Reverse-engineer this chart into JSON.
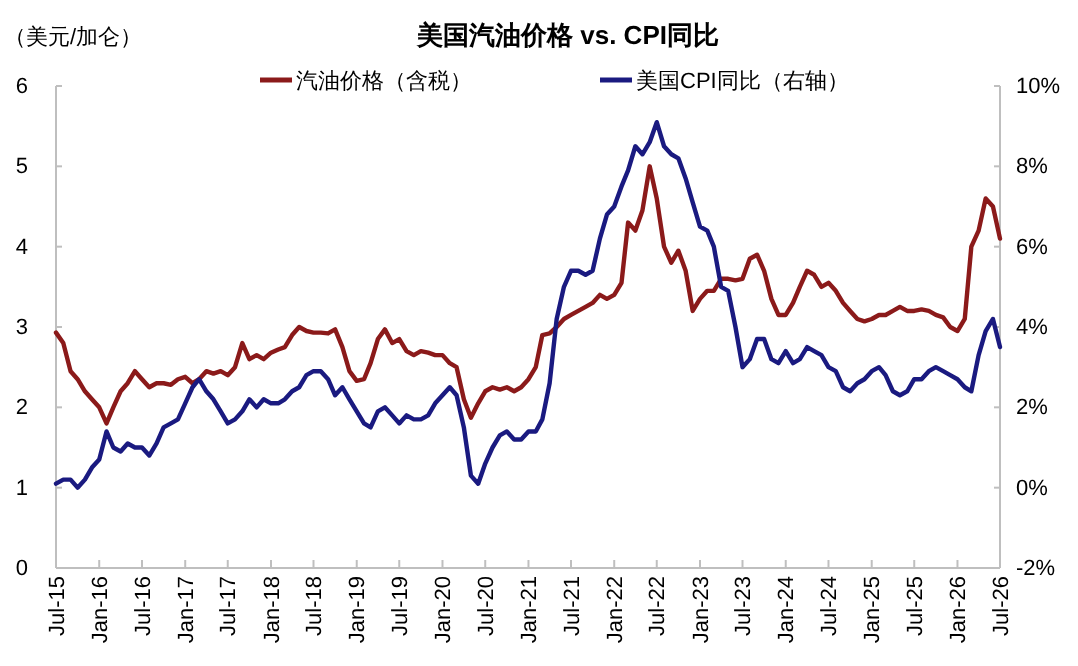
{
  "chart_data": {
    "type": "line",
    "title": "美国汽油价格 vs. CPI同比",
    "ylabel": "（美元/加仑）",
    "x": [
      "2015-07",
      "2015-08",
      "2015-09",
      "2015-10",
      "2015-11",
      "2015-12",
      "2016-01",
      "2016-02",
      "2016-03",
      "2016-04",
      "2016-05",
      "2016-06",
      "2016-07",
      "2016-08",
      "2016-09",
      "2016-10",
      "2016-11",
      "2016-12",
      "2017-01",
      "2017-02",
      "2017-03",
      "2017-04",
      "2017-05",
      "2017-06",
      "2017-07",
      "2017-08",
      "2017-09",
      "2017-10",
      "2017-11",
      "2017-12",
      "2018-01",
      "2018-02",
      "2018-03",
      "2018-04",
      "2018-05",
      "2018-06",
      "2018-07",
      "2018-08",
      "2018-09",
      "2018-10",
      "2018-11",
      "2018-12",
      "2019-01",
      "2019-02",
      "2019-03",
      "2019-04",
      "2019-05",
      "2019-06",
      "2019-07",
      "2019-08",
      "2019-09",
      "2019-10",
      "2019-11",
      "2019-12",
      "2020-01",
      "2020-02",
      "2020-03",
      "2020-04",
      "2020-05",
      "2020-06",
      "2020-07",
      "2020-08",
      "2020-09",
      "2020-10",
      "2020-11",
      "2020-12",
      "2021-01",
      "2021-02",
      "2021-03",
      "2021-04",
      "2021-05",
      "2021-06",
      "2021-07",
      "2021-08",
      "2021-09",
      "2021-10",
      "2021-11",
      "2021-12",
      "2022-01",
      "2022-02",
      "2022-03",
      "2022-04",
      "2022-05",
      "2022-06",
      "2022-07",
      "2022-08",
      "2022-09",
      "2022-10",
      "2022-11",
      "2022-12",
      "2023-01",
      "2023-02",
      "2023-03",
      "2023-04",
      "2023-05",
      "2023-06",
      "2023-07",
      "2023-08",
      "2023-09",
      "2023-10",
      "2023-11",
      "2023-12",
      "2024-01",
      "2024-02",
      "2024-03",
      "2024-04",
      "2024-05",
      "2024-06",
      "2024-07",
      "2024-08",
      "2024-09",
      "2024-10",
      "2024-11",
      "2024-12",
      "2025-01",
      "2025-02",
      "2025-03",
      "2025-04",
      "2025-05",
      "2025-06",
      "2025-07",
      "2025-08",
      "2025-09",
      "2025-10",
      "2025-11",
      "2025-12",
      "2026-01",
      "2026-02",
      "2026-03",
      "2026-04",
      "2026-05",
      "2026-06",
      "2026-07"
    ],
    "series": [
      {
        "name": "汽油价格（含税）",
        "color": "#8b1a1a",
        "values": [
          2.93,
          2.8,
          2.45,
          2.35,
          2.2,
          2.1,
          2.0,
          1.8,
          2.0,
          2.2,
          2.3,
          2.45,
          2.35,
          2.25,
          2.3,
          2.3,
          2.28,
          2.35,
          2.38,
          2.3,
          2.35,
          2.45,
          2.42,
          2.45,
          2.4,
          2.5,
          2.8,
          2.6,
          2.65,
          2.6,
          2.68,
          2.72,
          2.75,
          2.9,
          3.0,
          2.95,
          2.93,
          2.93,
          2.92,
          2.97,
          2.75,
          2.45,
          2.33,
          2.35,
          2.55,
          2.85,
          2.97,
          2.8,
          2.85,
          2.7,
          2.65,
          2.7,
          2.68,
          2.65,
          2.65,
          2.55,
          2.5,
          2.1,
          1.87,
          2.05,
          2.2,
          2.25,
          2.22,
          2.25,
          2.2,
          2.25,
          2.35,
          2.5,
          2.9,
          2.92,
          3.0,
          3.1,
          3.15,
          3.2,
          3.25,
          3.3,
          3.4,
          3.35,
          3.4,
          3.55,
          4.3,
          4.2,
          4.45,
          5.0,
          4.6,
          4.0,
          3.8,
          3.95,
          3.7,
          3.2,
          3.35,
          3.45,
          3.45,
          3.6,
          3.6,
          3.58,
          3.6,
          3.85,
          3.9,
          3.7,
          3.35,
          3.15,
          3.15,
          3.3,
          3.5,
          3.7,
          3.65,
          3.5,
          3.55,
          3.45,
          3.3,
          3.2,
          3.1,
          3.07,
          3.1,
          3.15,
          3.15,
          3.2,
          3.25,
          3.2,
          3.2,
          3.22,
          3.2,
          3.15,
          3.12,
          3.0,
          2.95,
          3.1,
          4.0,
          4.2,
          4.6,
          4.5,
          4.1
        ]
      },
      {
        "name": "美国CPI同比（右轴）",
        "color": "#1a1a80",
        "axis": "y2",
        "values": [
          0.1,
          0.2,
          0.2,
          0.0,
          0.2,
          0.5,
          0.7,
          1.4,
          1.0,
          0.9,
          1.1,
          1.0,
          1.0,
          0.8,
          1.1,
          1.5,
          1.6,
          1.7,
          2.1,
          2.5,
          2.7,
          2.4,
          2.2,
          1.9,
          1.6,
          1.7,
          1.9,
          2.2,
          2.0,
          2.2,
          2.1,
          2.1,
          2.2,
          2.4,
          2.5,
          2.8,
          2.9,
          2.9,
          2.7,
          2.3,
          2.5,
          2.2,
          1.9,
          1.6,
          1.5,
          1.9,
          2.0,
          1.8,
          1.6,
          1.8,
          1.7,
          1.7,
          1.8,
          2.1,
          2.3,
          2.5,
          2.3,
          1.5,
          0.3,
          0.1,
          0.6,
          1.0,
          1.3,
          1.4,
          1.2,
          1.2,
          1.4,
          1.4,
          1.7,
          2.6,
          4.2,
          5.0,
          5.4,
          5.4,
          5.3,
          5.4,
          6.2,
          6.8,
          7.0,
          7.5,
          7.9,
          8.5,
          8.3,
          8.6,
          9.1,
          8.5,
          8.3,
          8.2,
          7.7,
          7.1,
          6.5,
          6.4,
          6.0,
          5.0,
          4.9,
          4.0,
          3.0,
          3.2,
          3.7,
          3.7,
          3.2,
          3.1,
          3.4,
          3.1,
          3.2,
          3.5,
          3.4,
          3.3,
          3.0,
          2.9,
          2.5,
          2.4,
          2.6,
          2.7,
          2.9,
          3.0,
          2.8,
          2.4,
          2.3,
          2.4,
          2.7,
          2.7,
          2.9,
          3.0,
          2.9,
          2.8,
          2.7,
          2.5,
          2.4,
          3.3,
          3.9,
          4.2,
          3.5
        ]
      }
    ],
    "xlim": [
      "2015-07",
      "2026-07"
    ],
    "xticks": [
      {
        "value": "2015-07",
        "label": "Jul-15"
      },
      {
        "value": "2016-01",
        "label": "Jan-16"
      },
      {
        "value": "2016-07",
        "label": "Jul-16"
      },
      {
        "value": "2017-01",
        "label": "Jan-17"
      },
      {
        "value": "2017-07",
        "label": "Jul-17"
      },
      {
        "value": "2018-01",
        "label": "Jan-18"
      },
      {
        "value": "2018-07",
        "label": "Jul-18"
      },
      {
        "value": "2019-01",
        "label": "Jan-19"
      },
      {
        "value": "2019-07",
        "label": "Jul-19"
      },
      {
        "value": "2020-01",
        "label": "Jan-20"
      },
      {
        "value": "2020-07",
        "label": "Jul-20"
      },
      {
        "value": "2021-01",
        "label": "Jan-21"
      },
      {
        "value": "2021-07",
        "label": "Jul-21"
      },
      {
        "value": "2022-01",
        "label": "Jan-22"
      },
      {
        "value": "2022-07",
        "label": "Jul-22"
      },
      {
        "value": "2023-01",
        "label": "Jan-23"
      },
      {
        "value": "2023-07",
        "label": "Jul-23"
      },
      {
        "value": "2024-01",
        "label": "Jan-24"
      },
      {
        "value": "2024-07",
        "label": "Jul-24"
      },
      {
        "value": "2025-01",
        "label": "Jan-25"
      },
      {
        "value": "2025-07",
        "label": "Jul-25"
      },
      {
        "value": "2026-01",
        "label": "Jan-26"
      },
      {
        "value": "2026-07",
        "label": "Jul-26"
      }
    ],
    "ylim": [
      0,
      6
    ],
    "yticks": [
      0,
      1,
      2,
      3,
      4,
      5,
      6
    ],
    "y2lim": [
      -2,
      10
    ],
    "y2ticks": [
      {
        "value": -2,
        "label": "-2%"
      },
      {
        "value": 0,
        "label": "0%"
      },
      {
        "value": 2,
        "label": "2%"
      },
      {
        "value": 4,
        "label": "4%"
      },
      {
        "value": 6,
        "label": "6%"
      },
      {
        "value": 8,
        "label": "8%"
      },
      {
        "value": 10,
        "label": "10%"
      }
    ],
    "legend": "top",
    "grid": false,
    "marker": "none",
    "line_style": "solid"
  }
}
